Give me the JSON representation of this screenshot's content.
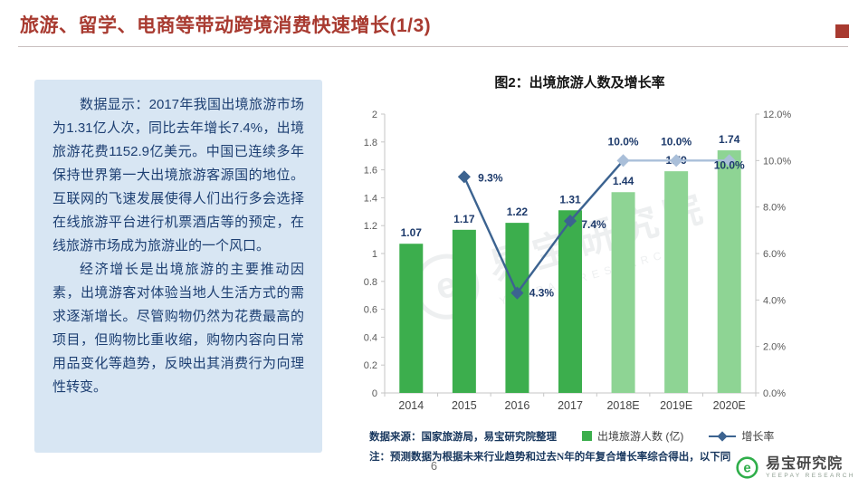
{
  "header": {
    "title": "旅游、留学、电商等带动跨境消费快速增长(1/3)",
    "accent_color": "#a83a30"
  },
  "panel": {
    "paragraphs": [
      "数据显示：2017年我国出境旅游市场为1.31亿人次，同比去年增长7.4%，出境旅游花费1152.9亿美元。中国已连续多年保持世界第一大出境旅游客源国的地位。互联网的飞速发展使得人们出行多会选择在线旅游平台进行机票酒店等的预定，在线旅游市场成为旅游业的一个风口。",
      "经济增长是出境旅游的主要推动因素，出境游客对体验当地人生活方式的需求逐渐增长。尽管购物仍然为花费最高的项目，但购物比重收缩，购物内容向日常用品变化等趋势，反映出其消费行为向理性转变。"
    ]
  },
  "chart": {
    "title": "图2：出境旅游人数及增长率",
    "source": "数据来源：国家旅游局，易宝研究院整理",
    "note": "注：预测数据为根据未来行业趋势和过去N年的年复合增长率综合得出，以下同"
  },
  "chart_data": {
    "type": "bar+line",
    "title": "图2：出境旅游人数及增长率",
    "categories": [
      "2014",
      "2015",
      "2016",
      "2017",
      "2018E",
      "2019E",
      "2020E"
    ],
    "series": [
      {
        "name": "出境旅游人数 (亿)",
        "type": "bar",
        "axis": "left",
        "values": [
          1.07,
          1.17,
          1.22,
          1.31,
          1.44,
          1.59,
          1.74
        ],
        "color": "#3cae4d",
        "forecast_color": "#8ed494",
        "forecast_from_index": 4
      },
      {
        "name": "增长率",
        "type": "line",
        "axis": "right",
        "unit": "%",
        "values": [
          null,
          9.3,
          4.3,
          7.4,
          10.0,
          10.0,
          10.0
        ],
        "color": "#3c6390",
        "forecast_color": "#aabfd9",
        "forecast_from_index": 4
      }
    ],
    "left_axis": {
      "min": 0,
      "max": 2,
      "step": 0.2
    },
    "right_axis": {
      "min": 0,
      "max": 12,
      "step": 2,
      "unit": "%"
    },
    "grid": false,
    "legend_position": "bottom"
  },
  "footer": {
    "page_number": "6",
    "logo_text": "易宝研究院",
    "logo_subtext": "YEEPAY RESEARCH",
    "logo_icon_letter": "e"
  },
  "watermark": {
    "text": "易宝研究院",
    "subtext": "YEEPAY RESEARCH"
  }
}
